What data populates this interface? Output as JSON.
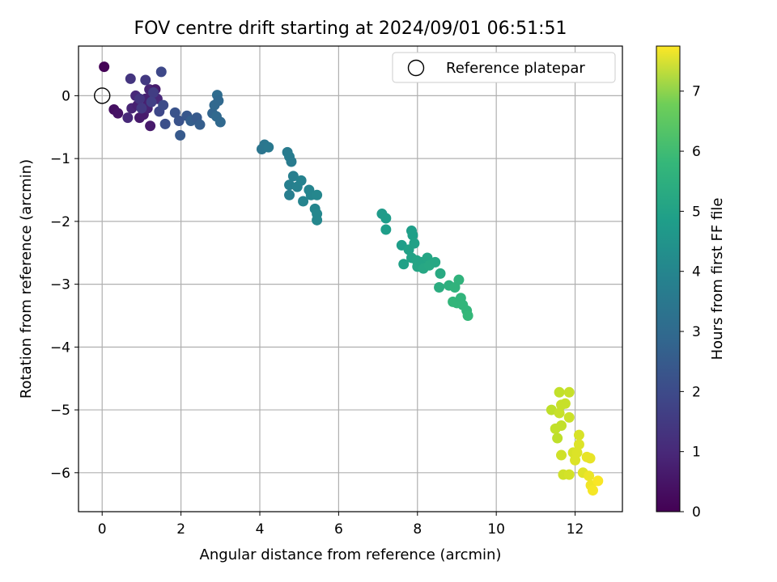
{
  "chart_data": {
    "type": "scatter",
    "title": "FOV centre drift starting at 2024/09/01 06:51:51",
    "xlabel": "Angular distance from reference (arcmin)",
    "ylabel": "Rotation from reference (arcmin)",
    "xlim": [
      -0.6,
      13.2
    ],
    "ylim": [
      -6.62,
      0.79
    ],
    "xticks": [
      0,
      2,
      4,
      6,
      8,
      10,
      12
    ],
    "yticks": [
      0,
      -1,
      -2,
      -3,
      -4,
      -5,
      -6
    ],
    "grid": true,
    "legend": {
      "position": "top-right",
      "entries": [
        "Reference platepar"
      ]
    },
    "reference_point": {
      "x": 0,
      "y": 0,
      "label": "Reference platepar"
    },
    "colorbar": {
      "label": "Hours from first FF file",
      "range": [
        0,
        7.75
      ],
      "ticks": [
        0,
        1,
        2,
        3,
        4,
        5,
        6,
        7
      ],
      "colormap": "viridis"
    },
    "points": [
      {
        "x": 0.05,
        "y": 0.46,
        "h": 0.05
      },
      {
        "x": 0.3,
        "y": -0.22,
        "h": 0.3
      },
      {
        "x": 0.4,
        "y": -0.28,
        "h": 0.4
      },
      {
        "x": 0.65,
        "y": -0.35,
        "h": 0.9
      },
      {
        "x": 0.75,
        "y": -0.2,
        "h": 0.8
      },
      {
        "x": 0.9,
        "y": -0.15,
        "h": 0.7
      },
      {
        "x": 0.95,
        "y": -0.35,
        "h": 0.55
      },
      {
        "x": 1.05,
        "y": -0.3,
        "h": 0.6
      },
      {
        "x": 1.1,
        "y": -0.05,
        "h": 0.7
      },
      {
        "x": 1.2,
        "y": 0.1,
        "h": 0.8
      },
      {
        "x": 1.15,
        "y": -0.2,
        "h": 0.75
      },
      {
        "x": 1.22,
        "y": -0.48,
        "h": 0.55
      },
      {
        "x": 1.35,
        "y": 0.1,
        "h": 0.6
      },
      {
        "x": 1.4,
        "y": -0.05,
        "h": 0.9
      },
      {
        "x": 0.85,
        "y": 0.0,
        "h": 0.9
      },
      {
        "x": 0.72,
        "y": 0.27,
        "h": 1.2
      },
      {
        "x": 1.1,
        "y": 0.25,
        "h": 1.3
      },
      {
        "x": 1.3,
        "y": 0.05,
        "h": 1.4
      },
      {
        "x": 0.95,
        "y": -0.05,
        "h": 1.2
      },
      {
        "x": 1.0,
        "y": -0.2,
        "h": 1.3
      },
      {
        "x": 1.25,
        "y": -0.1,
        "h": 1.5
      },
      {
        "x": 1.45,
        "y": -0.25,
        "h": 1.7
      },
      {
        "x": 1.5,
        "y": 0.38,
        "h": 1.7
      },
      {
        "x": 1.55,
        "y": -0.15,
        "h": 1.8
      },
      {
        "x": 1.6,
        "y": -0.45,
        "h": 1.9
      },
      {
        "x": 1.85,
        "y": -0.27,
        "h": 2.0
      },
      {
        "x": 1.95,
        "y": -0.4,
        "h": 2.0
      },
      {
        "x": 1.98,
        "y": -0.63,
        "h": 2.2
      },
      {
        "x": 2.15,
        "y": -0.32,
        "h": 2.1
      },
      {
        "x": 2.25,
        "y": -0.4,
        "h": 2.3
      },
      {
        "x": 2.4,
        "y": -0.35,
        "h": 2.2
      },
      {
        "x": 2.48,
        "y": -0.46,
        "h": 2.3
      },
      {
        "x": 2.8,
        "y": -0.28,
        "h": 2.5
      },
      {
        "x": 2.85,
        "y": -0.15,
        "h": 2.6
      },
      {
        "x": 2.92,
        "y": 0.01,
        "h": 2.7
      },
      {
        "x": 2.95,
        "y": -0.08,
        "h": 2.6
      },
      {
        "x": 2.9,
        "y": -0.33,
        "h": 2.6
      },
      {
        "x": 3.0,
        "y": -0.42,
        "h": 2.6
      },
      {
        "x": 4.05,
        "y": -0.85,
        "h": 3.0
      },
      {
        "x": 4.12,
        "y": -0.78,
        "h": 3.05
      },
      {
        "x": 4.22,
        "y": -0.82,
        "h": 3.1
      },
      {
        "x": 4.7,
        "y": -0.9,
        "h": 3.2
      },
      {
        "x": 4.75,
        "y": -0.97,
        "h": 3.25
      },
      {
        "x": 4.8,
        "y": -1.05,
        "h": 3.2
      },
      {
        "x": 4.85,
        "y": -1.28,
        "h": 3.3
      },
      {
        "x": 4.75,
        "y": -1.42,
        "h": 3.35
      },
      {
        "x": 4.75,
        "y": -1.58,
        "h": 3.3
      },
      {
        "x": 4.95,
        "y": -1.45,
        "h": 3.4
      },
      {
        "x": 5.05,
        "y": -1.35,
        "h": 3.45
      },
      {
        "x": 5.1,
        "y": -1.68,
        "h": 3.5
      },
      {
        "x": 5.25,
        "y": -1.5,
        "h": 3.5
      },
      {
        "x": 5.3,
        "y": -1.58,
        "h": 3.55
      },
      {
        "x": 5.45,
        "y": -1.58,
        "h": 3.6
      },
      {
        "x": 5.4,
        "y": -1.8,
        "h": 3.55
      },
      {
        "x": 5.45,
        "y": -1.88,
        "h": 3.6
      },
      {
        "x": 5.45,
        "y": -1.98,
        "h": 3.6
      },
      {
        "x": 7.1,
        "y": -1.88,
        "h": 4.2
      },
      {
        "x": 7.2,
        "y": -1.95,
        "h": 4.25
      },
      {
        "x": 7.2,
        "y": -2.13,
        "h": 4.3
      },
      {
        "x": 7.6,
        "y": -2.38,
        "h": 4.3
      },
      {
        "x": 7.65,
        "y": -2.68,
        "h": 4.4
      },
      {
        "x": 7.78,
        "y": -2.45,
        "h": 4.4
      },
      {
        "x": 7.85,
        "y": -2.15,
        "h": 4.3
      },
      {
        "x": 7.88,
        "y": -2.22,
        "h": 4.35
      },
      {
        "x": 7.92,
        "y": -2.35,
        "h": 4.4
      },
      {
        "x": 7.85,
        "y": -2.58,
        "h": 4.45
      },
      {
        "x": 7.98,
        "y": -2.62,
        "h": 4.5
      },
      {
        "x": 8.0,
        "y": -2.72,
        "h": 4.55
      },
      {
        "x": 8.1,
        "y": -2.65,
        "h": 4.5
      },
      {
        "x": 8.15,
        "y": -2.75,
        "h": 4.6
      },
      {
        "x": 8.25,
        "y": -2.58,
        "h": 4.55
      },
      {
        "x": 8.3,
        "y": -2.7,
        "h": 4.65
      },
      {
        "x": 8.45,
        "y": -2.65,
        "h": 4.6
      },
      {
        "x": 8.58,
        "y": -2.83,
        "h": 4.7
      },
      {
        "x": 8.55,
        "y": -3.05,
        "h": 4.8
      },
      {
        "x": 8.8,
        "y": -3.02,
        "h": 4.9
      },
      {
        "x": 8.95,
        "y": -3.05,
        "h": 5.0
      },
      {
        "x": 9.05,
        "y": -2.93,
        "h": 5.0
      },
      {
        "x": 8.9,
        "y": -3.28,
        "h": 5.1
      },
      {
        "x": 9.0,
        "y": -3.3,
        "h": 5.1
      },
      {
        "x": 9.1,
        "y": -3.22,
        "h": 5.05
      },
      {
        "x": 9.15,
        "y": -3.33,
        "h": 5.1
      },
      {
        "x": 9.25,
        "y": -3.42,
        "h": 5.1
      },
      {
        "x": 9.28,
        "y": -3.5,
        "h": 5.15
      },
      {
        "x": 11.4,
        "y": -5.0,
        "h": 7.0
      },
      {
        "x": 11.5,
        "y": -5.3,
        "h": 7.05
      },
      {
        "x": 11.55,
        "y": -5.45,
        "h": 7.0
      },
      {
        "x": 11.6,
        "y": -4.72,
        "h": 7.05
      },
      {
        "x": 11.6,
        "y": -5.05,
        "h": 7.1
      },
      {
        "x": 11.65,
        "y": -5.25,
        "h": 7.05
      },
      {
        "x": 11.65,
        "y": -4.92,
        "h": 7.1
      },
      {
        "x": 11.75,
        "y": -4.9,
        "h": 7.1
      },
      {
        "x": 11.85,
        "y": -4.72,
        "h": 7.1
      },
      {
        "x": 11.85,
        "y": -5.12,
        "h": 7.15
      },
      {
        "x": 11.65,
        "y": -5.72,
        "h": 7.2
      },
      {
        "x": 11.7,
        "y": -6.03,
        "h": 7.2
      },
      {
        "x": 11.85,
        "y": -6.03,
        "h": 7.25
      },
      {
        "x": 11.95,
        "y": -5.68,
        "h": 7.3
      },
      {
        "x": 12.0,
        "y": -5.8,
        "h": 7.35
      },
      {
        "x": 12.05,
        "y": -5.68,
        "h": 7.35
      },
      {
        "x": 12.1,
        "y": -5.4,
        "h": 7.3
      },
      {
        "x": 12.1,
        "y": -5.55,
        "h": 7.35
      },
      {
        "x": 12.2,
        "y": -6.0,
        "h": 7.4
      },
      {
        "x": 12.3,
        "y": -5.75,
        "h": 7.5
      },
      {
        "x": 12.38,
        "y": -5.77,
        "h": 7.5
      },
      {
        "x": 12.35,
        "y": -6.05,
        "h": 7.55
      },
      {
        "x": 12.4,
        "y": -6.2,
        "h": 7.6
      },
      {
        "x": 12.45,
        "y": -6.28,
        "h": 7.65
      },
      {
        "x": 12.58,
        "y": -6.13,
        "h": 7.7
      }
    ]
  }
}
